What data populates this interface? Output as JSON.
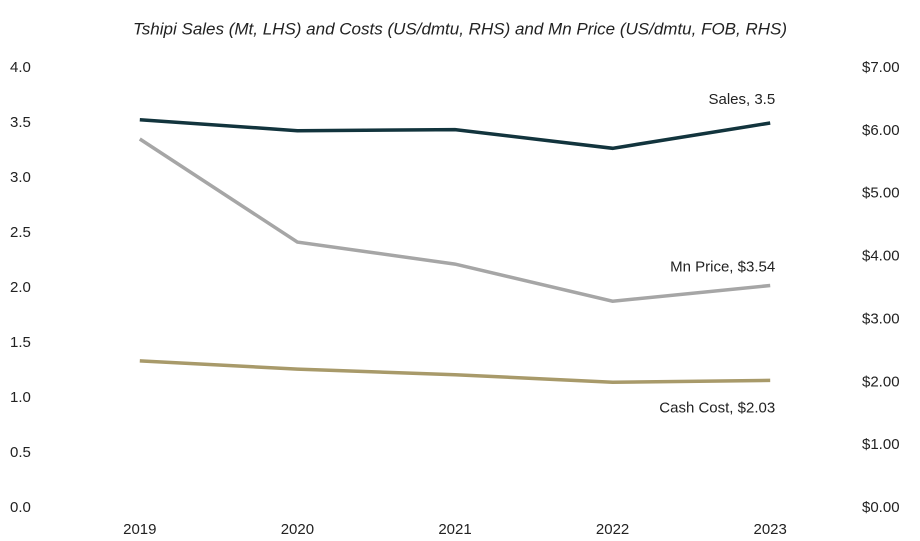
{
  "chart_data": {
    "type": "line",
    "title": "Tshipi Sales (Mt, LHS) and Costs (US/dmtu, RHS) and Mn Price (US/dmtu, FOB, RHS)",
    "categories": [
      "2019",
      "2020",
      "2021",
      "2022",
      "2023"
    ],
    "series": [
      {
        "name": "Sales",
        "color": "#12343d",
        "values": [
          3.53,
          3.43,
          3.44,
          3.27,
          3.5
        ],
        "label": "Sales, 3.5"
      },
      {
        "name": "Mn Price",
        "color": "#a6a6a6",
        "axis": "y2",
        "values": [
          5.87,
          4.23,
          3.88,
          3.29,
          3.54
        ],
        "label": "Mn Price, $3.54"
      },
      {
        "name": "Cash Cost",
        "color": "#a89a6a",
        "axis": "y2",
        "values": [
          2.34,
          2.21,
          2.12,
          2.0,
          2.03
        ],
        "label": "Cash Cost, $2.03"
      }
    ],
    "ylim": [
      0,
      4
    ],
    "yticks": [
      {
        "value": 0,
        "label": "0.0"
      },
      {
        "value": 0.5,
        "label": "0.5"
      },
      {
        "value": 1,
        "label": "1.0"
      },
      {
        "value": 1.5,
        "label": "1.5"
      },
      {
        "value": 2,
        "label": "2.0"
      },
      {
        "value": 2.5,
        "label": "2.5"
      },
      {
        "value": 3,
        "label": "3.0"
      },
      {
        "value": 3.5,
        "label": "3.5"
      },
      {
        "value": 4,
        "label": "4.0"
      }
    ],
    "y2lim": [
      0,
      7
    ],
    "y2ticks": [
      {
        "value": 0,
        "label": "$0.00"
      },
      {
        "value": 1,
        "label": "$1.00"
      },
      {
        "value": 2,
        "label": "$2.00"
      },
      {
        "value": 3,
        "label": "$3.00"
      },
      {
        "value": 4,
        "label": "$4.00"
      },
      {
        "value": 5,
        "label": "$5.00"
      },
      {
        "value": 6,
        "label": "$6.00"
      },
      {
        "value": 7,
        "label": "$7.00"
      }
    ]
  }
}
